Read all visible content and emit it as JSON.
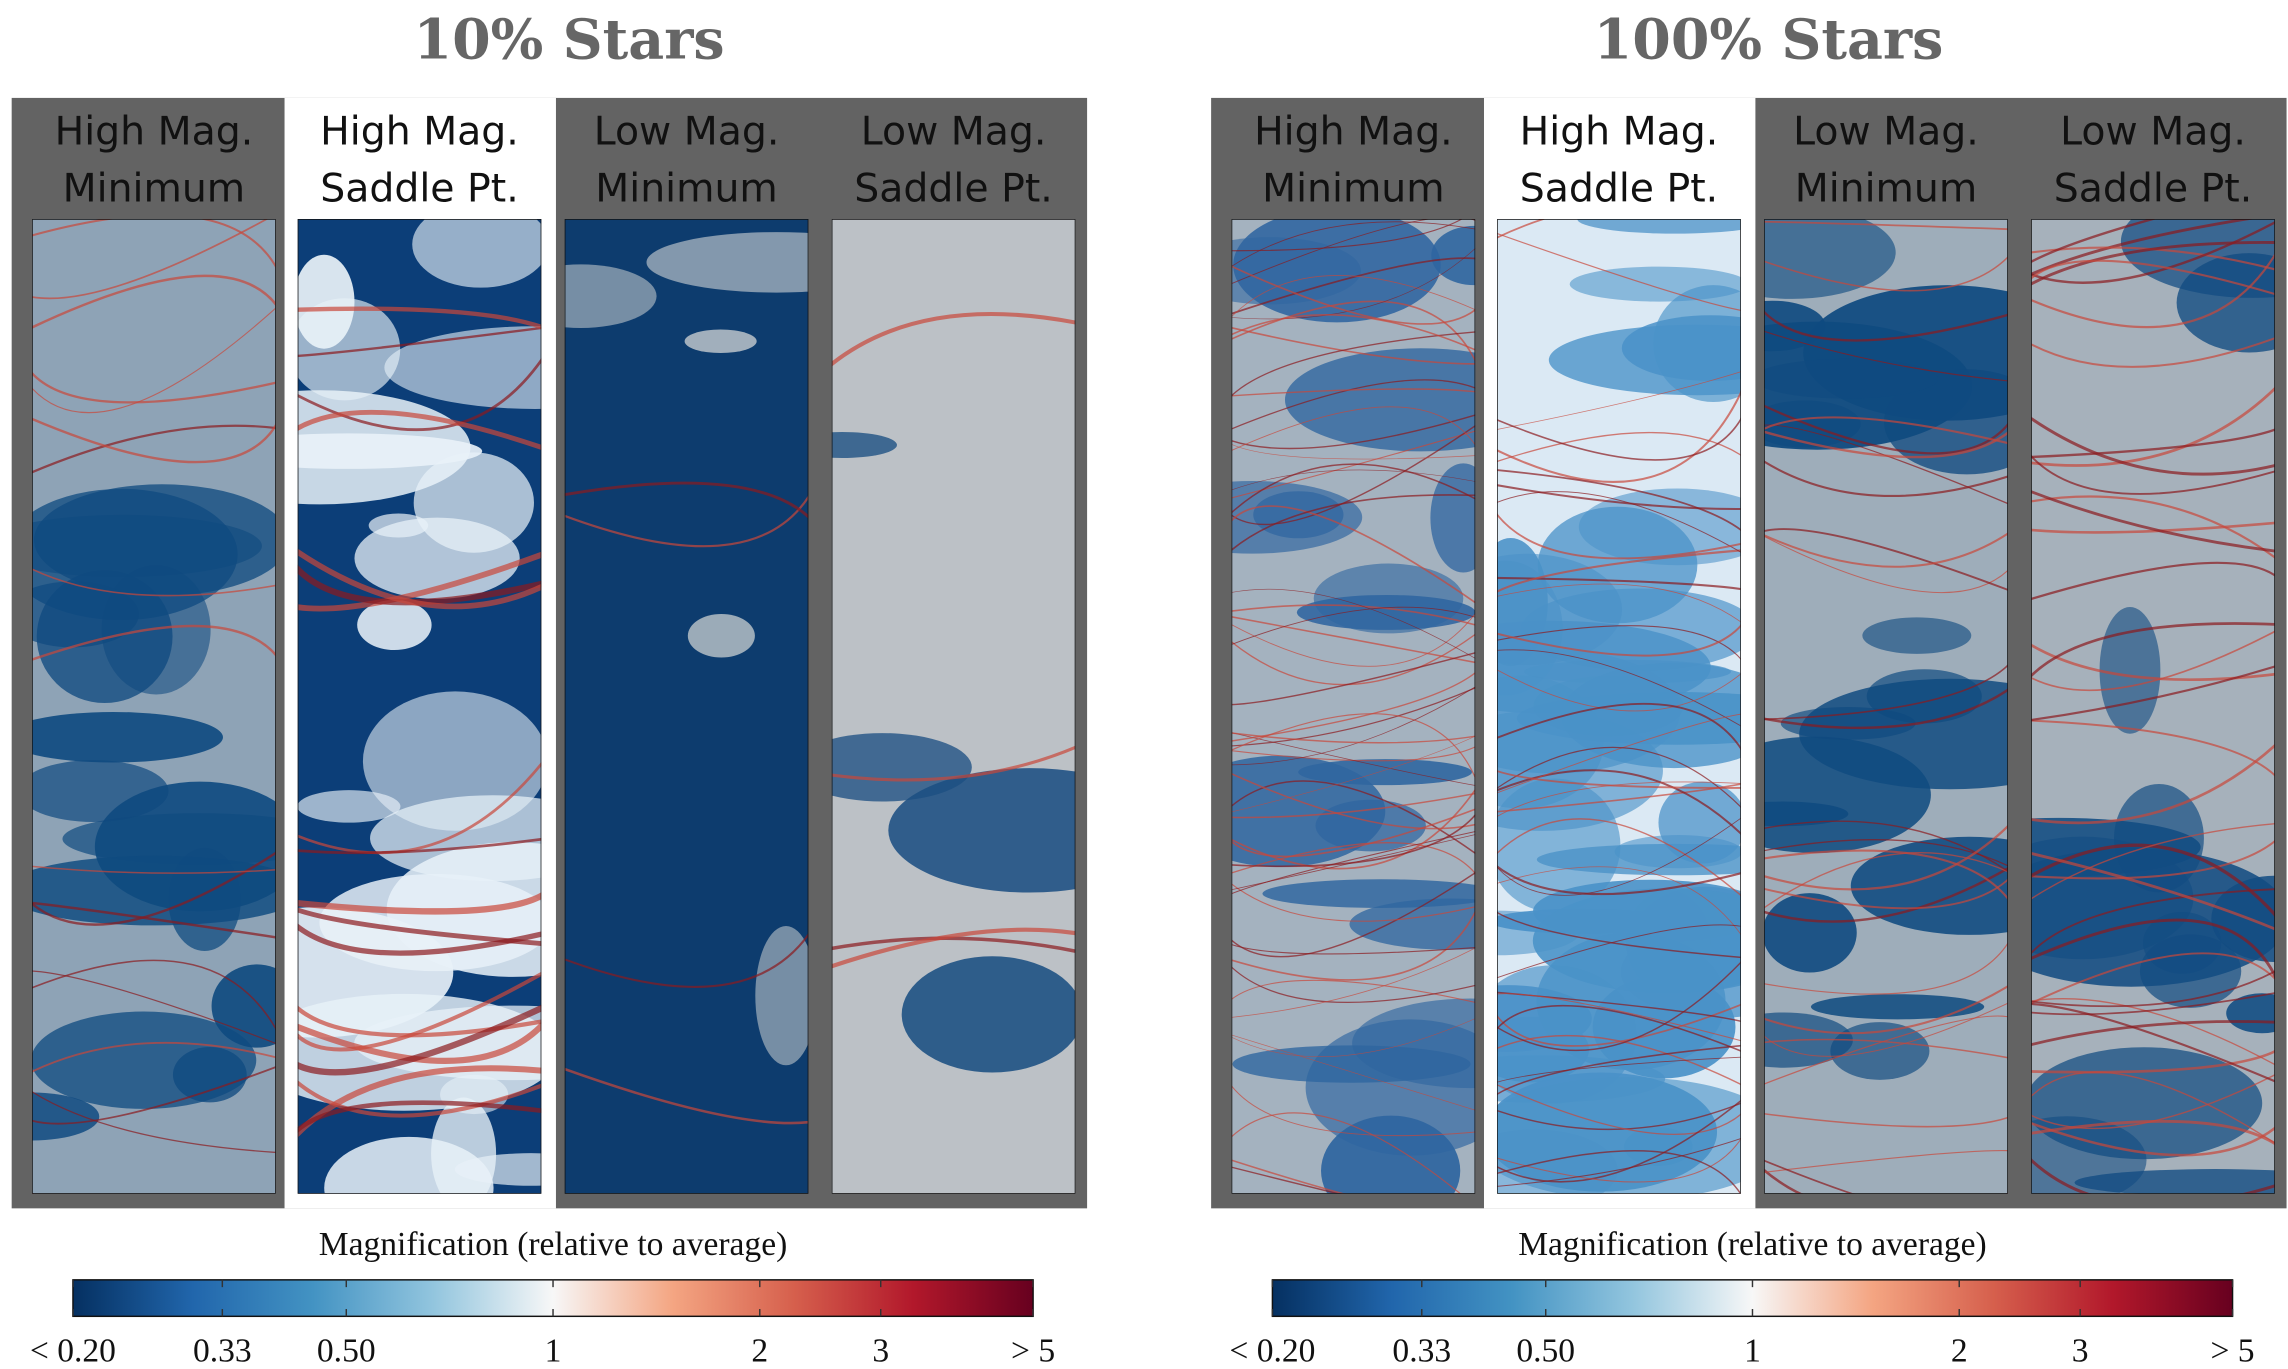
{
  "chart_data": [
    {
      "type": "colorbar",
      "title": "10% Stars",
      "panels": [
        [
          "High Mag.",
          "Minimum"
        ],
        [
          "High Mag.",
          "Saddle Pt."
        ],
        [
          "Low Mag.",
          "Minimum"
        ],
        [
          "Low Mag.",
          "Saddle Pt."
        ]
      ],
      "xlabel": "Magnification (relative to average)",
      "log_scale": true,
      "xlim": [
        0.2,
        5
      ],
      "xticks": [
        {
          "value": 0.2,
          "label": "< 0.20"
        },
        0.33,
        {
          "value": 0.5,
          "label": "0.50"
        },
        1,
        2,
        3,
        {
          "value": 5,
          "label": "> 5"
        }
      ],
      "colors": [
        "#053061",
        "#2166ac",
        "#4393c3",
        "#92c5de",
        "#f7f7f7",
        "#f4a582",
        "#d6604d",
        "#b2182b",
        "#67001f"
      ]
    },
    {
      "type": "colorbar",
      "title": "100% Stars",
      "panels": [
        [
          "High Mag.",
          "Minimum"
        ],
        [
          "High Mag.",
          "Saddle Pt."
        ],
        [
          "Low Mag.",
          "Minimum"
        ],
        [
          "Low Mag.",
          "Saddle Pt."
        ]
      ],
      "xlabel": "Magnification (relative to average)",
      "log_scale": true,
      "xlim": [
        0.2,
        5
      ],
      "xticks": [
        {
          "value": 0.2,
          "label": "< 0.20"
        },
        0.33,
        {
          "value": 0.5,
          "label": "0.50"
        },
        1,
        2,
        3,
        {
          "value": 5,
          "label": "> 5"
        }
      ],
      "colors": [
        "#053061",
        "#2166ac",
        "#4393c3",
        "#92c5de",
        "#f7f7f7",
        "#f4a582",
        "#d6604d",
        "#b2182b",
        "#67001f"
      ]
    }
  ]
}
